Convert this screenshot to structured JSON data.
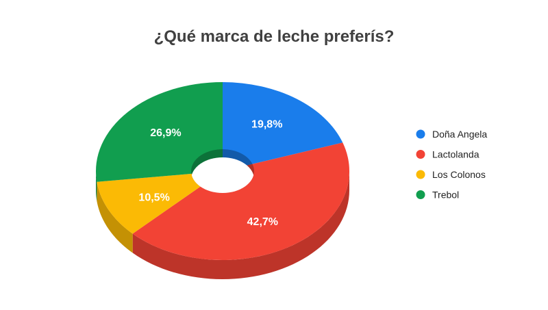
{
  "chart_data": {
    "type": "pie",
    "title": "¿Qué marca de leche preferís?",
    "donut": true,
    "three_d": true,
    "legend_position": "right",
    "slices": [
      {
        "label": "Doña Angela",
        "value": 19.8,
        "value_label": "19,8%",
        "color": "#1A7DEB"
      },
      {
        "label": "Lactolanda",
        "value": 42.7,
        "value_label": "42,7%",
        "color": "#F24335"
      },
      {
        "label": "Los Colonos",
        "value": 10.5,
        "value_label": "10,5%",
        "color": "#FBBA05"
      },
      {
        "label": "Trebol",
        "value": 26.9,
        "value_label": "26,9%",
        "color": "#119E4F"
      }
    ]
  }
}
